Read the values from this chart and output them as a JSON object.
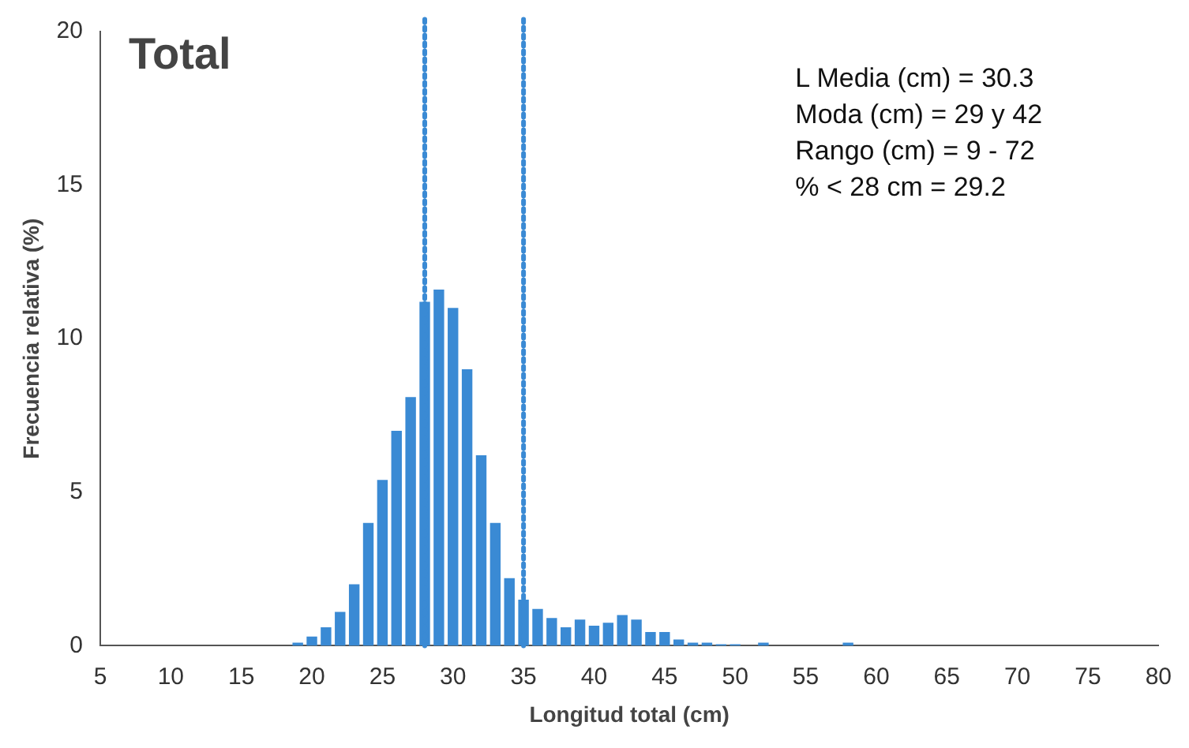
{
  "chart_data": {
    "type": "histogram",
    "title": "Total",
    "xlabel": "Longitud total (cm)",
    "ylabel": "Frecuencia relativa (%)",
    "bins": [
      18.5,
      19.5,
      20.5,
      21.5,
      22.5,
      23.5,
      24.5,
      25.5,
      26.5,
      27.5,
      28.5,
      29.5,
      30.5,
      31.5,
      32.5,
      33.5,
      34.5,
      35.5,
      36.5,
      37.5,
      38.5,
      39.5,
      40.5,
      41.5,
      42.5,
      43.5,
      44.5,
      45.5,
      46.5,
      47.5,
      48.5,
      49.5,
      50.5,
      51.5,
      52.5,
      53.5,
      54.5,
      55.5,
      56.5,
      57.5,
      58.5
    ],
    "values": [
      0.1,
      0.3,
      0.6,
      1.1,
      2.0,
      4.0,
      5.4,
      7.0,
      8.1,
      11.2,
      11.6,
      11.0,
      9.0,
      6.2,
      4.0,
      2.2,
      1.5,
      1.2,
      0.9,
      0.6,
      0.85,
      0.65,
      0.75,
      1.0,
      0.85,
      0.45,
      0.45,
      0.2,
      0.1,
      0.1,
      0.05,
      0.05,
      0,
      0.1,
      0,
      0,
      0,
      0,
      0,
      0.1
    ],
    "color": "#3a8ad4",
    "xlim": [
      5,
      80
    ],
    "xticks": [
      5,
      10,
      15,
      20,
      25,
      30,
      35,
      40,
      45,
      50,
      55,
      60,
      65,
      70,
      75,
      80
    ],
    "ylim": [
      0,
      20
    ],
    "yticks": [
      0,
      5,
      10,
      15,
      20
    ],
    "grid": false,
    "legend": false,
    "ref_lines": [
      {
        "axis": "x",
        "value": 28,
        "color": "#3a8ad4",
        "line_style": "dotted"
      },
      {
        "axis": "x",
        "value": 35,
        "color": "#3a8ad4",
        "line_style": "dotted"
      }
    ],
    "annotations": [
      "L Media (cm) = 30.3",
      "Moda (cm) = 29 y 42",
      "Rango (cm) = 9 - 72",
      "% < 28 cm = 29.2"
    ]
  }
}
